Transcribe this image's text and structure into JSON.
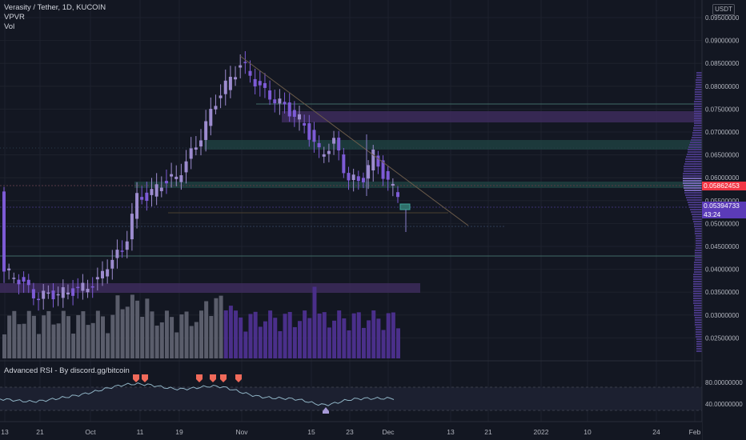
{
  "header": {
    "symbol_title": "Verasity / Tether, 1D, KUCOIN",
    "indicators": [
      "VPVR",
      "Vol"
    ],
    "currency": "USDT"
  },
  "rsi_panel": {
    "title": "Advanced RSI - By discord.gg/bitcoin",
    "y_labels": [
      "80.00000000",
      "40.00000000"
    ]
  },
  "price_scale": {
    "labels": [
      "0.09500000",
      "0.09000000",
      "0.08500000",
      "0.08000000",
      "0.07500000",
      "0.07000000",
      "0.06500000",
      "0.06000000",
      "0.05500000",
      "0.05000000",
      "0.04500000",
      "0.04000000",
      "0.03500000",
      "0.03000000",
      "0.02500000"
    ],
    "tag_poc": "0.05862453",
    "tag_last": "0.05394733",
    "tag_countdown": "43:24"
  },
  "time_axis": {
    "labels": [
      "13",
      "21",
      "Oct",
      "11",
      "19",
      "Nov",
      "15",
      "23",
      "Dec",
      "13",
      "21",
      "2022",
      "10",
      "24",
      "Feb"
    ]
  },
  "colors": {
    "background": "#131722",
    "candle": "#9d8ccf",
    "candle_strong": "#7d5bd6",
    "volume": "#5a5d6b",
    "volume_purple": "#4a2f8a",
    "zone_purple": "#3d2b5c",
    "zone_green": "#1f3f3f",
    "rsi_line": "#8fb3c4",
    "marker_red": "#f06a5a",
    "marker_purple": "#a79ad8"
  }
}
